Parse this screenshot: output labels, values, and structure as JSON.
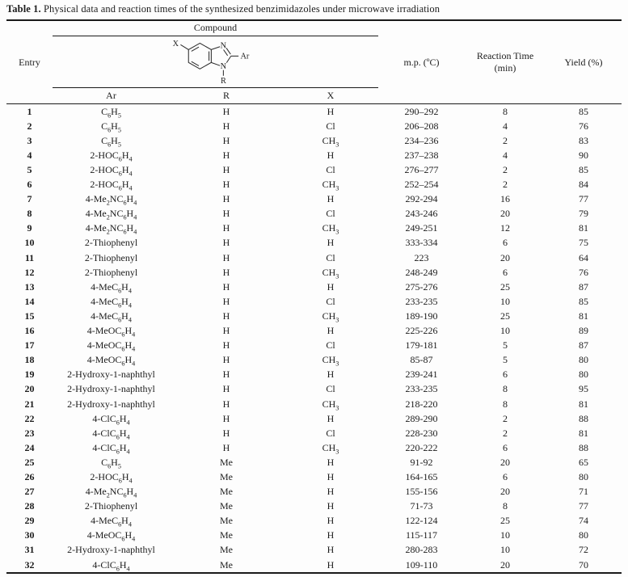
{
  "page": {
    "background": "#fdfdfd",
    "text_color": "#1c1c1c",
    "rule_color": "#1a1a1a"
  },
  "title": {
    "bold": "Table 1.",
    "rest": " Physical data and reaction times of the synthesized benzimidazoles under microwave irradiation"
  },
  "header": {
    "entry": "Entry",
    "compound": "Compound",
    "sub_columns": {
      "ar": "Ar",
      "r": "R",
      "x": "X"
    },
    "mp": "m.p. (ºC)",
    "reaction_time_line1": "Reaction Time",
    "reaction_time_line2": "(min)",
    "yield": "Yield (%)",
    "structure_labels": {
      "x": "X",
      "n_top": "N",
      "n_bottom": "N",
      "ar": "Ar",
      "r": "R"
    }
  },
  "rows": [
    {
      "entry": "1",
      "ar": "C_6H_5",
      "r": "H",
      "x": "H",
      "mp": "290–292",
      "time": "8",
      "yield": "85"
    },
    {
      "entry": "2",
      "ar": "C_6H_5",
      "r": "H",
      "x": "Cl",
      "mp": "206–208",
      "time": "4",
      "yield": "76"
    },
    {
      "entry": "3",
      "ar": "C_6H_5",
      "r": "H",
      "x": "CH_3",
      "mp": "234–236",
      "time": "2",
      "yield": "83"
    },
    {
      "entry": "4",
      "ar": "2-HOC_6H_4",
      "r": "H",
      "x": "H",
      "mp": "237–238",
      "time": "4",
      "yield": "90"
    },
    {
      "entry": "5",
      "ar": "2-HOC_6H_4",
      "r": "H",
      "x": "Cl",
      "mp": "276–277",
      "time": "2",
      "yield": "85"
    },
    {
      "entry": "6",
      "ar": "2-HOC_6H_4",
      "r": "H",
      "x": "CH_3",
      "mp": "252–254",
      "time": "2",
      "yield": "84"
    },
    {
      "entry": "7",
      "ar": "4-Me_2NC_6H_4",
      "r": "H",
      "x": "H",
      "mp": "292-294",
      "time": "16",
      "yield": "77"
    },
    {
      "entry": "8",
      "ar": "4-Me_2NC_6H_4",
      "r": "H",
      "x": "Cl",
      "mp": "243-246",
      "time": "20",
      "yield": "79"
    },
    {
      "entry": "9",
      "ar": "4-Me_2NC_6H_4",
      "r": "H",
      "x": "CH_3",
      "mp": "249-251",
      "time": "12",
      "yield": "81"
    },
    {
      "entry": "10",
      "ar": "2-Thiophenyl",
      "r": "H",
      "x": "H",
      "mp": "333-334",
      "time": "6",
      "yield": "75"
    },
    {
      "entry": "11",
      "ar": "2-Thiophenyl",
      "r": "H",
      "x": "Cl",
      "mp": "223",
      "time": "20",
      "yield": "64"
    },
    {
      "entry": "12",
      "ar": "2-Thiophenyl",
      "r": "H",
      "x": "CH_3",
      "mp": "248-249",
      "time": "6",
      "yield": "76"
    },
    {
      "entry": "13",
      "ar": "4-MeC_6H_4",
      "r": "H",
      "x": "H",
      "mp": "275-276",
      "time": "25",
      "yield": "87"
    },
    {
      "entry": "14",
      "ar": "4-MeC_6H_4",
      "r": "H",
      "x": "Cl",
      "mp": "233-235",
      "time": "10",
      "yield": "85"
    },
    {
      "entry": "15",
      "ar": "4-MeC_6H_4",
      "r": "H",
      "x": "CH_3",
      "mp": "189-190",
      "time": "25",
      "yield": "81"
    },
    {
      "entry": "16",
      "ar": "4-MeOC_6H_4",
      "r": "H",
      "x": "H",
      "mp": "225-226",
      "time": "10",
      "yield": "89"
    },
    {
      "entry": "17",
      "ar": "4-MeOC_6H_4",
      "r": "H",
      "x": "Cl",
      "mp": "179-181",
      "time": "5",
      "yield": "87"
    },
    {
      "entry": "18",
      "ar": "4-MeOC_6H_4",
      "r": "H",
      "x": "CH_3",
      "mp": "85-87",
      "time": "5",
      "yield": "80"
    },
    {
      "entry": "19",
      "ar": "2-Hydroxy-1-naphthyl",
      "r": "H",
      "x": "H",
      "mp": "239-241",
      "time": "6",
      "yield": "80"
    },
    {
      "entry": "20",
      "ar": "2-Hydroxy-1-naphthyl",
      "r": "H",
      "x": "Cl",
      "mp": "233-235",
      "time": "8",
      "yield": "95"
    },
    {
      "entry": "21",
      "ar": "2-Hydroxy-1-naphthyl",
      "r": "H",
      "x": "CH_3",
      "mp": "218-220",
      "time": "8",
      "yield": "81"
    },
    {
      "entry": "22",
      "ar": "4-ClC_6H_4",
      "r": "H",
      "x": "H",
      "mp": "289-290",
      "time": "2",
      "yield": "88"
    },
    {
      "entry": "23",
      "ar": "4-ClC_6H_4",
      "r": "H",
      "x": "Cl",
      "mp": "228-230",
      "time": "2",
      "yield": "81"
    },
    {
      "entry": "24",
      "ar": "4-ClC_6H_4",
      "r": "H",
      "x": "CH_3",
      "mp": "220-222",
      "time": "6",
      "yield": "88"
    },
    {
      "entry": "25",
      "ar": "C_6H_5",
      "r": "Me",
      "x": "H",
      "mp": "91-92",
      "time": "20",
      "yield": "65"
    },
    {
      "entry": "26",
      "ar": "2-HOC_6H_4",
      "r": "Me",
      "x": "H",
      "mp": "164-165",
      "time": "6",
      "yield": "80"
    },
    {
      "entry": "27",
      "ar": "4-Me_2NC_6H_4",
      "r": "Me",
      "x": "H",
      "mp": "155-156",
      "time": "20",
      "yield": "71"
    },
    {
      "entry": "28",
      "ar": "2-Thiophenyl",
      "r": "Me",
      "x": "H",
      "mp": "71-73",
      "time": "8",
      "yield": "77"
    },
    {
      "entry": "29",
      "ar": "4-MeC_6H_4",
      "r": "Me",
      "x": "H",
      "mp": "122-124",
      "time": "25",
      "yield": "74"
    },
    {
      "entry": "30",
      "ar": "4-MeOC_6H_4",
      "r": "Me",
      "x": "H",
      "mp": "115-117",
      "time": "10",
      "yield": "80"
    },
    {
      "entry": "31",
      "ar": "2-Hydroxy-1-naphthyl",
      "r": "Me",
      "x": "H",
      "mp": "280-283",
      "time": "10",
      "yield": "72"
    },
    {
      "entry": "32",
      "ar": "4-ClC_6H_4",
      "r": "Me",
      "x": "H",
      "mp": "109-110",
      "time": "20",
      "yield": "70"
    }
  ]
}
